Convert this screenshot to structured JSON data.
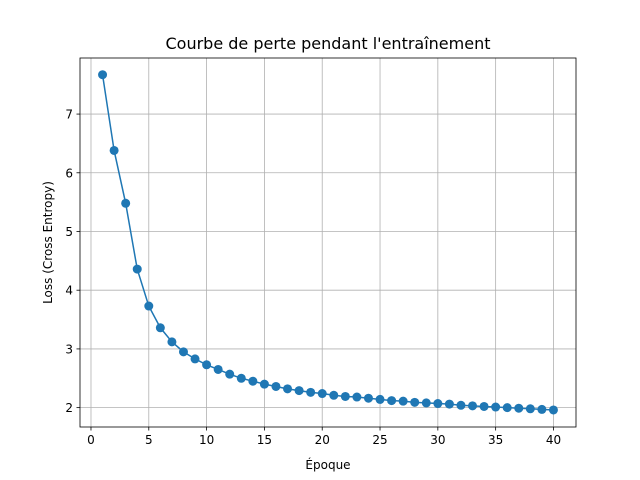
{
  "chart_data": {
    "type": "line",
    "title": "Courbe de perte pendant l'entraînement",
    "xlabel": "Époque",
    "ylabel": "Loss (Cross Entropy)",
    "xlim": [
      -0.95,
      41.95
    ],
    "ylim": [
      1.67,
      7.955
    ],
    "xticks": [
      0,
      5,
      10,
      15,
      20,
      25,
      30,
      35,
      40
    ],
    "yticks": [
      2,
      3,
      4,
      5,
      6,
      7
    ],
    "grid": true,
    "series": [
      {
        "color": "#1f77b4",
        "marker": "circle",
        "x": [
          1,
          2,
          3,
          4,
          5,
          6,
          7,
          8,
          9,
          10,
          11,
          12,
          13,
          14,
          15,
          16,
          17,
          18,
          19,
          20,
          21,
          22,
          23,
          24,
          25,
          26,
          27,
          28,
          29,
          30,
          31,
          32,
          33,
          34,
          35,
          36,
          37,
          38,
          39,
          40
        ],
        "values": [
          7.67,
          6.38,
          5.48,
          4.36,
          3.73,
          3.36,
          3.12,
          2.95,
          2.83,
          2.73,
          2.65,
          2.57,
          2.5,
          2.45,
          2.4,
          2.36,
          2.32,
          2.29,
          2.26,
          2.24,
          2.21,
          2.19,
          2.18,
          2.16,
          2.14,
          2.12,
          2.11,
          2.09,
          2.08,
          2.07,
          2.06,
          2.04,
          2.03,
          2.02,
          2.01,
          2.0,
          1.99,
          1.98,
          1.97,
          1.96
        ]
      }
    ]
  }
}
